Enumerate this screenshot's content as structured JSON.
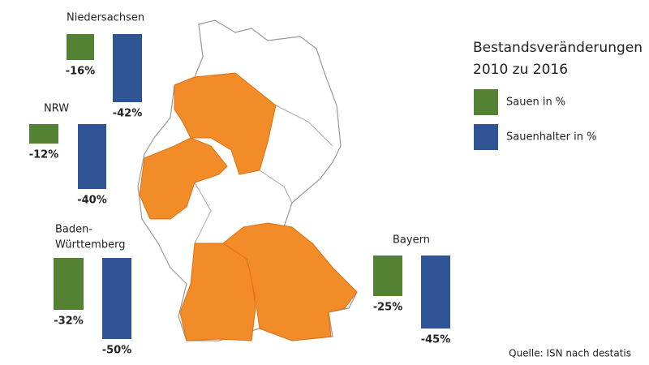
{
  "chart_data": [
    {
      "type": "bar",
      "title": "Niedersachsen",
      "values": [
        -16,
        -42
      ],
      "value_labels": [
        "-16%",
        "-42%"
      ]
    },
    {
      "type": "bar",
      "title": "NRW",
      "values": [
        -12,
        -40
      ],
      "value_labels": [
        "-12%",
        "-40%"
      ]
    },
    {
      "type": "bar",
      "title": [
        "Baden-",
        "Württemberg"
      ],
      "values": [
        -32,
        -50
      ],
      "value_labels": [
        "-32%",
        "-50%"
      ]
    },
    {
      "type": "bar",
      "title": "Bayern",
      "values": [
        -25,
        -45
      ],
      "value_labels": [
        "-25%",
        "-45%"
      ]
    }
  ],
  "legend": {
    "title": [
      "Bestandsveränderungen",
      "2010 zu 2016"
    ],
    "items": [
      {
        "name": "Sauen in %",
        "color": "#548235"
      },
      {
        "name": "Sauenhalter in %",
        "color": "#2f5597"
      }
    ]
  },
  "source": "Quelle: ISN nach destatis"
}
